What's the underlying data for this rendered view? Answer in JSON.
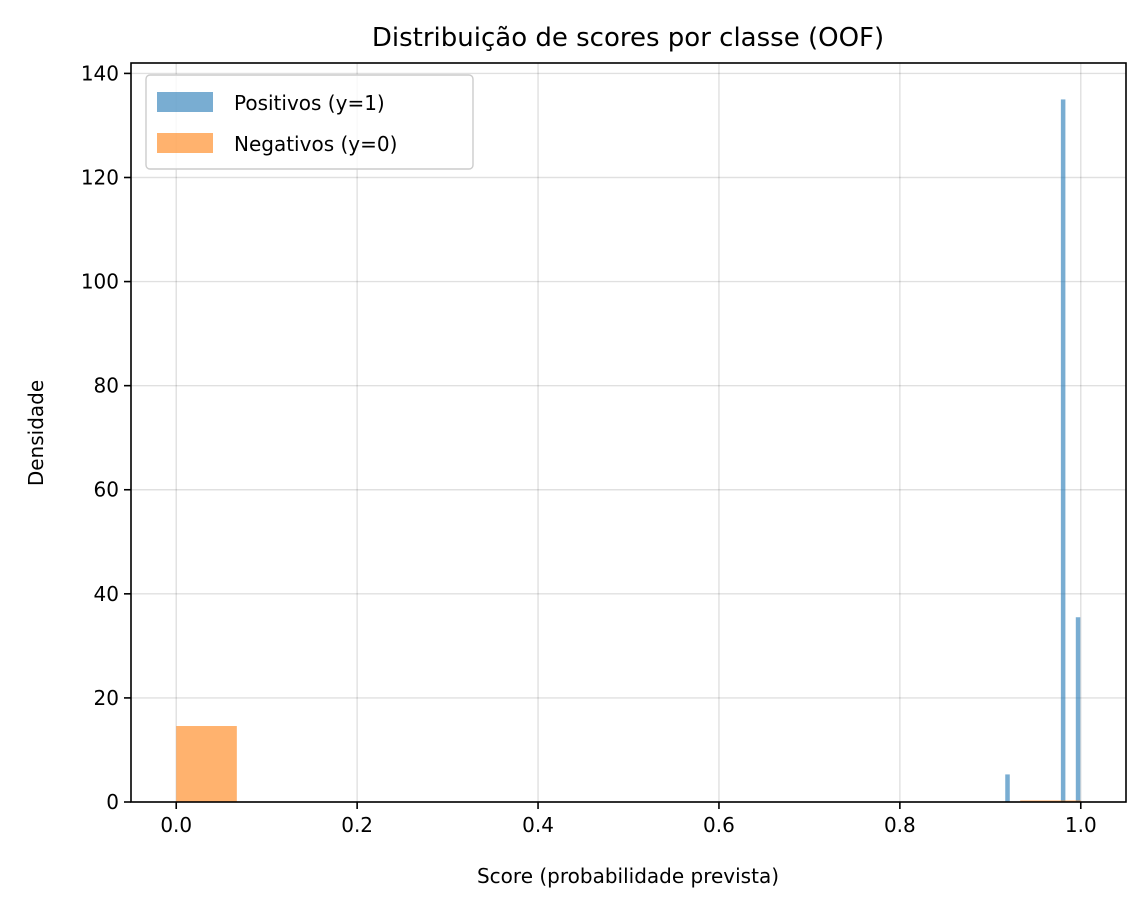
{
  "chart_data": {
    "type": "histogram",
    "title": "Distribuição de scores por classe (OOF)",
    "xlabel": "Score (probabilidade prevista)",
    "ylabel": "Densidade",
    "xlim": [
      -0.05,
      1.05
    ],
    "ylim": [
      0,
      142
    ],
    "xticks": [
      "0.0",
      "0.2",
      "0.4",
      "0.6",
      "0.8",
      "1.0"
    ],
    "yticks": [
      "0",
      "20",
      "40",
      "60",
      "80",
      "100",
      "120",
      "140"
    ],
    "grid": true,
    "legend_position": "top-left",
    "series": [
      {
        "name": "Positivos (y=1)",
        "color": "#1f77b4",
        "alpha": 0.6,
        "bins": [
          {
            "x0": 0.9165,
            "x1": 0.9215,
            "density": 5.3
          },
          {
            "x0": 0.978,
            "x1": 0.983,
            "density": 135
          },
          {
            "x0": 0.9945,
            "x1": 0.9995,
            "density": 35.5
          }
        ]
      },
      {
        "name": "Negativos (y=0)",
        "color": "#ff7f0e",
        "alpha": 0.6,
        "bins": [
          {
            "x0": 0.0,
            "x1": 0.067,
            "density": 14.6
          },
          {
            "x0": 0.933,
            "x1": 1.0,
            "density": 0.3
          }
        ]
      }
    ]
  }
}
